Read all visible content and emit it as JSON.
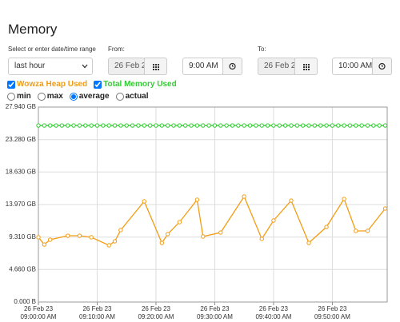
{
  "title": "Memory",
  "range": {
    "label": "Select or enter date/time range",
    "value": "last hour"
  },
  "from": {
    "label": "From:",
    "date": "26 Feb 2",
    "time": "9:00 AM"
  },
  "to": {
    "label": "To:",
    "date": "26 Feb 2",
    "time": "10:00 AM"
  },
  "aggregation": {
    "options": [
      "min",
      "max",
      "average",
      "actual"
    ],
    "selected": "average"
  },
  "chart_data": {
    "type": "line",
    "grid": true,
    "ylim": [
      0,
      27.94
    ],
    "yticks": [
      {
        "value": 0,
        "label": "0.000 B"
      },
      {
        "value": 4.66,
        "label": "4.660 GB"
      },
      {
        "value": 9.31,
        "label": "9.310 GB"
      },
      {
        "value": 13.97,
        "label": "13.970 GB"
      },
      {
        "value": 18.63,
        "label": "18.630 GB"
      },
      {
        "value": 23.28,
        "label": "23.280 GB"
      },
      {
        "value": 27.94,
        "label": "27.940 GB"
      }
    ],
    "xlim": [
      "2023-02-26T09:00:00",
      "2023-02-26T09:59:20"
    ],
    "xticks": [
      {
        "value": "2023-02-26T09:00:00",
        "label": "26 Feb 23 09:00:00 AM"
      },
      {
        "value": "2023-02-26T09:10:00",
        "label": "26 Feb 23 09:10:00 AM"
      },
      {
        "value": "2023-02-26T09:20:00",
        "label": "26 Feb 23 09:20:00 AM"
      },
      {
        "value": "2023-02-26T09:30:00",
        "label": "26 Feb 23 09:30:00 AM"
      },
      {
        "value": "2023-02-26T09:40:00",
        "label": "26 Feb 23 09:40:00 AM"
      },
      {
        "value": "2023-02-26T09:50:00",
        "label": "26 Feb 23 09:50:00 AM"
      }
    ],
    "series": [
      {
        "name": "Wowza Heap Used",
        "color": "#f39c12",
        "x": [
          "2023-02-26T09:00:00",
          "2023-02-26T09:01:00",
          "2023-02-26T09:02:00",
          "2023-02-26T09:05:00",
          "2023-02-26T09:07:00",
          "2023-02-26T09:09:00",
          "2023-02-26T09:12:00",
          "2023-02-26T09:13:00",
          "2023-02-26T09:14:00",
          "2023-02-26T09:18:00",
          "2023-02-26T09:21:00",
          "2023-02-26T09:22:00",
          "2023-02-26T09:24:00",
          "2023-02-26T09:27:00",
          "2023-02-26T09:28:00",
          "2023-02-26T09:31:00",
          "2023-02-26T09:35:00",
          "2023-02-26T09:38:00",
          "2023-02-26T09:40:00",
          "2023-02-26T09:43:00",
          "2023-02-26T09:46:00",
          "2023-02-26T09:49:00",
          "2023-02-26T09:52:00",
          "2023-02-26T09:54:00",
          "2023-02-26T09:56:00",
          "2023-02-26T09:59:00"
        ],
        "values": [
          9.28,
          8.24,
          8.93,
          9.5,
          9.5,
          9.28,
          8.13,
          8.7,
          10.31,
          14.43,
          8.47,
          9.73,
          11.45,
          14.66,
          9.39,
          9.96,
          15.12,
          9.05,
          11.68,
          14.54,
          8.47,
          10.76,
          14.77,
          10.19,
          10.19,
          13.4
        ]
      },
      {
        "name": "Total Memory Used",
        "color": "#33cc33",
        "x": [
          "2023-02-26T09:00:00",
          "2023-02-26T09:01:00",
          "2023-02-26T09:02:00",
          "2023-02-26T09:03:00",
          "2023-02-26T09:04:00",
          "2023-02-26T09:05:00",
          "2023-02-26T09:06:00",
          "2023-02-26T09:07:00",
          "2023-02-26T09:08:00",
          "2023-02-26T09:09:00",
          "2023-02-26T09:10:00",
          "2023-02-26T09:11:00",
          "2023-02-26T09:12:00",
          "2023-02-26T09:13:00",
          "2023-02-26T09:14:00",
          "2023-02-26T09:15:00",
          "2023-02-26T09:16:00",
          "2023-02-26T09:17:00",
          "2023-02-26T09:18:00",
          "2023-02-26T09:19:00",
          "2023-02-26T09:20:00",
          "2023-02-26T09:21:00",
          "2023-02-26T09:22:00",
          "2023-02-26T09:23:00",
          "2023-02-26T09:24:00",
          "2023-02-26T09:25:00",
          "2023-02-26T09:26:00",
          "2023-02-26T09:27:00",
          "2023-02-26T09:28:00",
          "2023-02-26T09:29:00",
          "2023-02-26T09:30:00",
          "2023-02-26T09:31:00",
          "2023-02-26T09:32:00",
          "2023-02-26T09:33:00",
          "2023-02-26T09:34:00",
          "2023-02-26T09:35:00",
          "2023-02-26T09:36:00",
          "2023-02-26T09:37:00",
          "2023-02-26T09:38:00",
          "2023-02-26T09:39:00",
          "2023-02-26T09:40:00",
          "2023-02-26T09:41:00",
          "2023-02-26T09:42:00",
          "2023-02-26T09:43:00",
          "2023-02-26T09:44:00",
          "2023-02-26T09:45:00",
          "2023-02-26T09:46:00",
          "2023-02-26T09:47:00",
          "2023-02-26T09:48:00",
          "2023-02-26T09:49:00",
          "2023-02-26T09:50:00",
          "2023-02-26T09:51:00",
          "2023-02-26T09:52:00",
          "2023-02-26T09:53:00",
          "2023-02-26T09:54:00",
          "2023-02-26T09:55:00",
          "2023-02-26T09:56:00",
          "2023-02-26T09:57:00",
          "2023-02-26T09:58:00",
          "2023-02-26T09:59:00"
        ],
        "values": [
          25.3,
          25.3,
          25.3,
          25.3,
          25.3,
          25.3,
          25.3,
          25.3,
          25.3,
          25.3,
          25.3,
          25.3,
          25.3,
          25.3,
          25.3,
          25.3,
          25.3,
          25.3,
          25.3,
          25.3,
          25.3,
          25.3,
          25.3,
          25.3,
          25.3,
          25.3,
          25.3,
          25.3,
          25.3,
          25.3,
          25.3,
          25.3,
          25.3,
          25.3,
          25.3,
          25.3,
          25.3,
          25.3,
          25.3,
          25.3,
          25.3,
          25.3,
          25.3,
          25.3,
          25.3,
          25.3,
          25.3,
          25.3,
          25.3,
          25.3,
          25.3,
          25.3,
          25.3,
          25.3,
          25.3,
          25.3,
          25.3,
          25.3,
          25.3,
          25.3
        ]
      }
    ]
  }
}
